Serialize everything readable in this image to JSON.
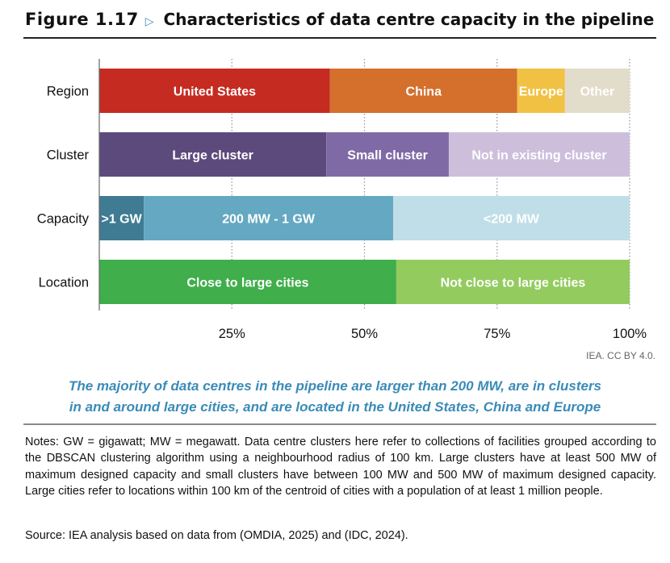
{
  "figure": {
    "label": "Figure 1.17",
    "title": "Characteristics of data centre capacity in the pipeline"
  },
  "credit": "IEA. CC BY 4.0.",
  "takeaway_lines": [
    "The majority of data centres in the pipeline are larger than 200 MW, are in clusters",
    "in and around large cities, and are located in the United States, China and Europe"
  ],
  "notes": "Notes: GW = gigawatt; MW = megawatt. Data centre clusters here refer to collections of facilities grouped according to the DBSCAN clustering algorithm using a neighbourhood radius of 100 km. Large clusters have at least 500 MW of maximum designed capacity and small clusters have between 100 MW and 500 MW of maximum designed capacity. Large cities refer to locations within 100 km of the centroid of cities with a population of at least 1 million people.",
  "source": "Source: IEA analysis based on data from (OMDIA, 2025) and (IDC, 2024).",
  "colors": {
    "us": "#c52b21",
    "china": "#d46f2c",
    "europe": "#f1c143",
    "other": "#e2dccb",
    "large_cluster": "#5d4a7c",
    "small_cluster": "#806aa6",
    "not_cluster": "#cdbfdc",
    "gt1gw": "#3f7b93",
    "mw200_1gw": "#64a8c2",
    "lt200": "#bfdee8",
    "close": "#3fae4b",
    "not_close": "#93cb5f",
    "label_light": "#ffffff",
    "label_dark": "#ffffff",
    "axis": "#666666",
    "text": "#111111"
  },
  "chart_data": {
    "type": "bar",
    "orientation": "horizontal",
    "stacked": true,
    "categories": [
      "Region",
      "Cluster",
      "Capacity",
      "Location"
    ],
    "xlim": [
      0,
      100
    ],
    "xticks": [
      25,
      50,
      75,
      100
    ],
    "xtick_labels": [
      "25%",
      "50%",
      "75%",
      "100%"
    ],
    "grid": "vertical dotted",
    "rows": [
      {
        "category": "Region",
        "segments": [
          {
            "label": "United States",
            "value": 43.5,
            "color_key": "us"
          },
          {
            "label": "China",
            "value": 35.3,
            "color_key": "china"
          },
          {
            "label": "Europe",
            "value": 9.0,
            "color_key": "europe"
          },
          {
            "label": "Other",
            "value": 12.2,
            "color_key": "other"
          }
        ]
      },
      {
        "category": "Cluster",
        "segments": [
          {
            "label": "Large cluster",
            "value": 42.8,
            "color_key": "large_cluster"
          },
          {
            "label": "Small cluster",
            "value": 23.1,
            "color_key": "small_cluster"
          },
          {
            "label": "Not in existing cluster",
            "value": 34.1,
            "color_key": "not_cluster"
          }
        ]
      },
      {
        "category": "Capacity",
        "segments": [
          {
            "label": ">1 GW",
            "value": 8.4,
            "color_key": "gt1gw"
          },
          {
            "label": "200 MW - 1 GW",
            "value": 47.0,
            "color_key": "mw200_1gw"
          },
          {
            "label": "<200 MW",
            "value": 44.6,
            "color_key": "lt200"
          }
        ]
      },
      {
        "category": "Location",
        "segments": [
          {
            "label": "Close to large cities",
            "value": 56.0,
            "color_key": "close"
          },
          {
            "label": "Not close to large cities",
            "value": 44.0,
            "color_key": "not_close"
          }
        ]
      }
    ]
  }
}
